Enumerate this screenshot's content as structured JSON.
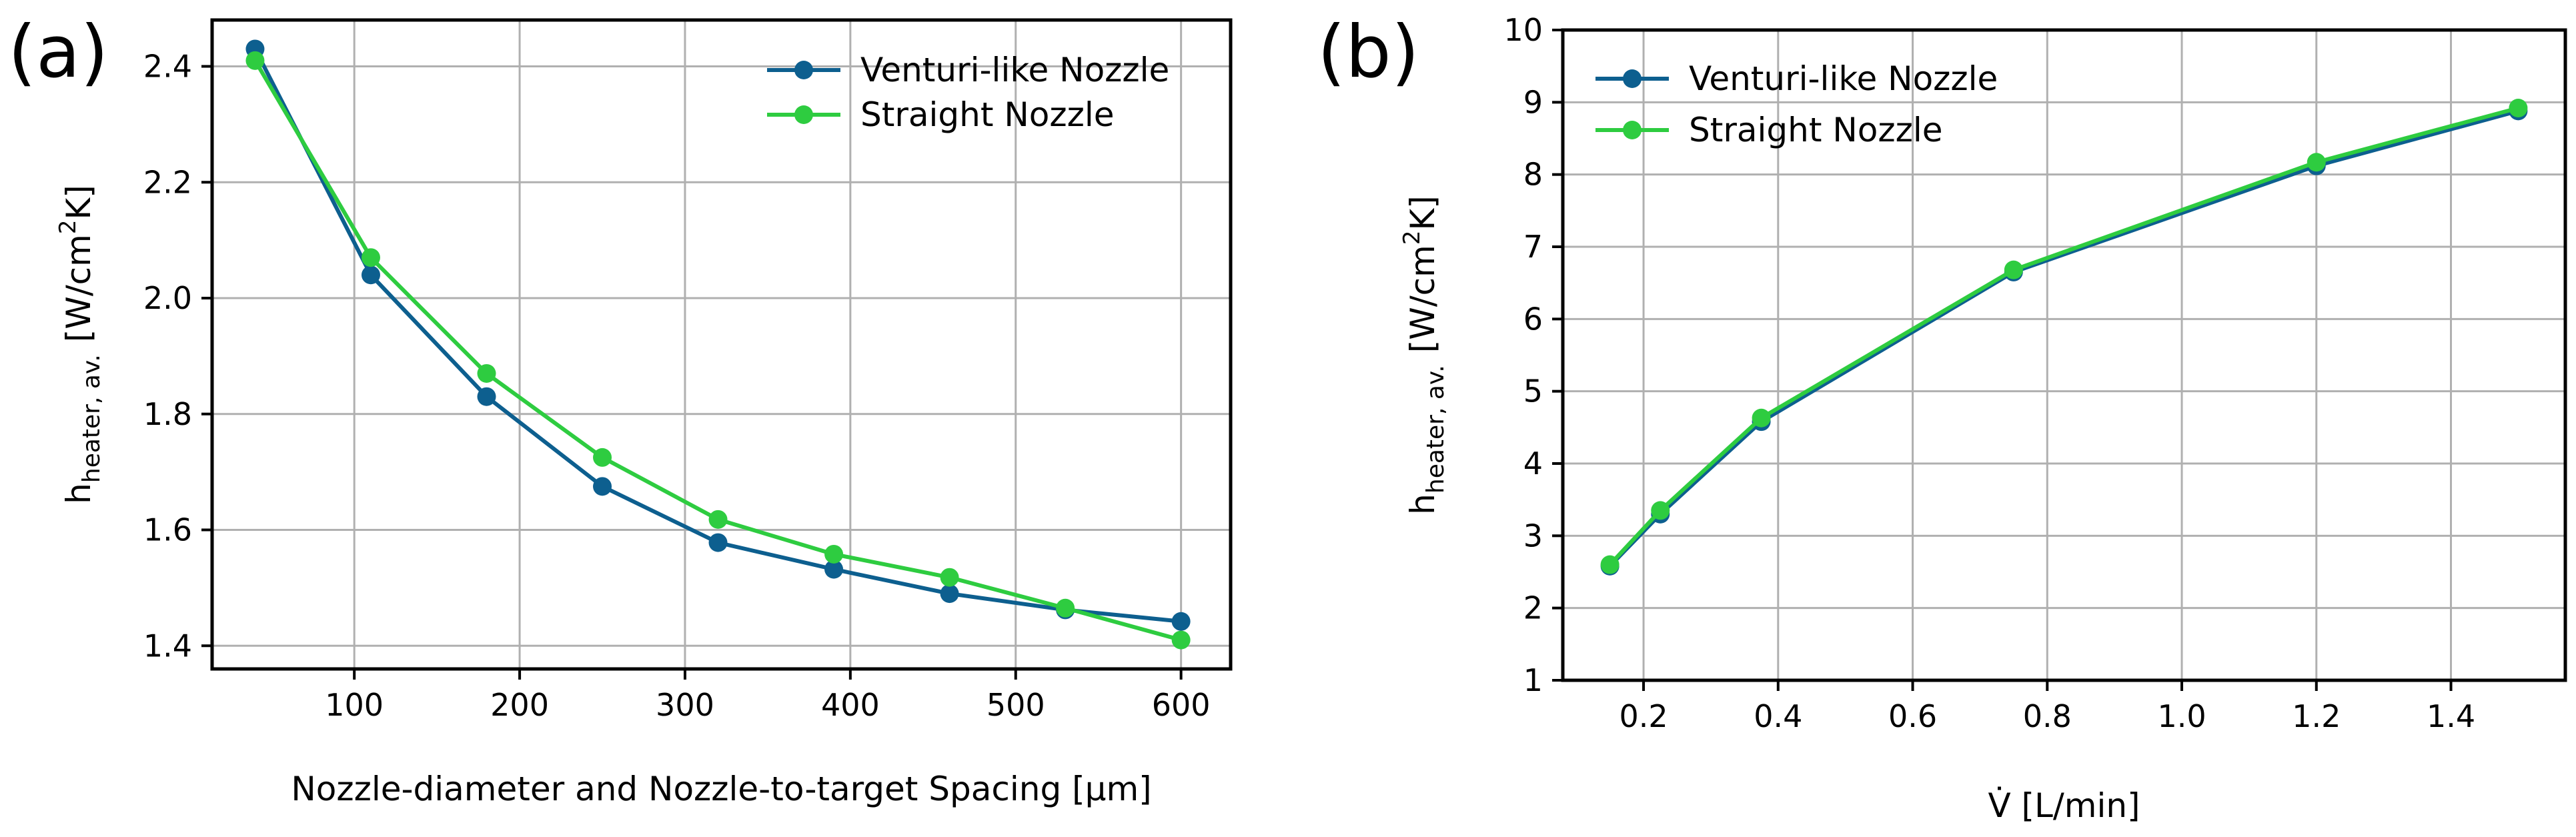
{
  "chart_data": [
    {
      "panel_label": "(a)",
      "type": "line",
      "xlabel": "Nozzle-diameter and Nozzle-to-target Spacing [μm]",
      "ylabel": {
        "main": "h",
        "sub": "heater, av.",
        "units_pre": "[W/cm",
        "units_sup": "2",
        "units_post": "K]"
      },
      "xlim": [
        14,
        630
      ],
      "ylim": [
        1.36,
        2.48
      ],
      "xticks": [
        100,
        200,
        300,
        400,
        500,
        600
      ],
      "xtick_labels": [
        "100",
        "200",
        "300",
        "400",
        "500",
        "600"
      ],
      "yticks": [
        1.4,
        1.6,
        1.8,
        2.0,
        2.2,
        2.4
      ],
      "ytick_labels": [
        "1.4",
        "1.6",
        "1.8",
        "2.0",
        "2.2",
        "2.4"
      ],
      "grid": true,
      "legend_position": "top-right",
      "series": [
        {
          "name": "Venturi-like Nozzle",
          "color": "#0d5f8f",
          "x": [
            40,
            110,
            180,
            250,
            320,
            390,
            460,
            530,
            600
          ],
          "y": [
            2.43,
            2.04,
            1.83,
            1.675,
            1.578,
            1.532,
            1.49,
            1.462,
            1.442
          ]
        },
        {
          "name": "Straight Nozzle",
          "color": "#2ecc40",
          "x": [
            40,
            110,
            180,
            250,
            320,
            390,
            460,
            530,
            600
          ],
          "y": [
            2.41,
            2.07,
            1.87,
            1.725,
            1.618,
            1.558,
            1.518,
            1.465,
            1.41
          ]
        }
      ]
    },
    {
      "panel_label": "(b)",
      "type": "line",
      "xlabel": "V̇ [L/min]",
      "ylabel": {
        "main": "h",
        "sub": "heater, av.",
        "units_pre": "[W/cm",
        "units_sup": "2",
        "units_post": "K]"
      },
      "xlim": [
        0.08,
        1.57
      ],
      "ylim": [
        1,
        10
      ],
      "xticks": [
        0.2,
        0.4,
        0.6,
        0.8,
        1.0,
        1.2,
        1.4
      ],
      "xtick_labels": [
        "0.2",
        "0.4",
        "0.6",
        "0.8",
        "1.0",
        "1.2",
        "1.4"
      ],
      "yticks": [
        1,
        2,
        3,
        4,
        5,
        6,
        7,
        8,
        9,
        10
      ],
      "ytick_labels": [
        "1",
        "2",
        "3",
        "4",
        "5",
        "6",
        "7",
        "8",
        "9",
        "10"
      ],
      "grid": true,
      "legend_position": "top-left",
      "series": [
        {
          "name": "Venturi-like Nozzle",
          "color": "#0d5f8f",
          "x": [
            0.15,
            0.225,
            0.375,
            0.75,
            1.2,
            1.5
          ],
          "y": [
            2.58,
            3.3,
            4.58,
            6.65,
            8.12,
            8.88
          ]
        },
        {
          "name": "Straight Nozzle",
          "color": "#2ecc40",
          "x": [
            0.15,
            0.225,
            0.375,
            0.75,
            1.2,
            1.5
          ],
          "y": [
            2.6,
            3.35,
            4.63,
            6.68,
            8.17,
            8.92
          ]
        }
      ]
    }
  ]
}
